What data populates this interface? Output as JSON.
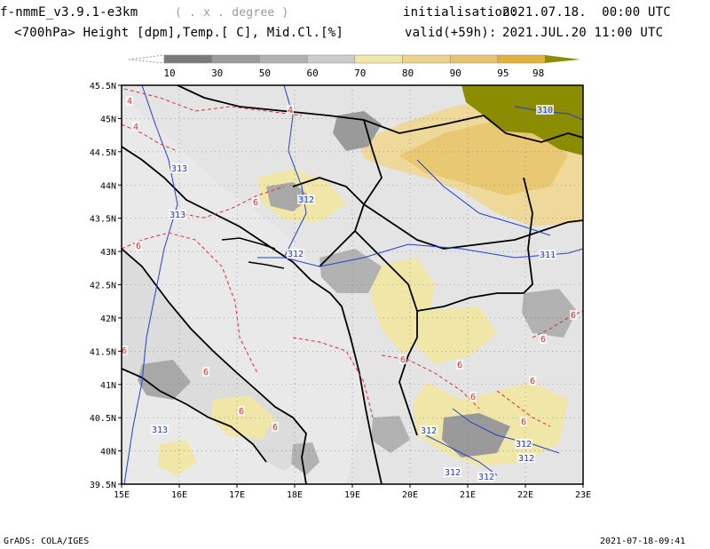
{
  "header": {
    "model_name": "f-nmmE_v3.9.1-e3km",
    "unit_note": "( . x . degree )",
    "fields": "<700hPa> Height [dpm],Temp.[ C], Mid.Cl.[%]",
    "init_label": "initialisation:",
    "init_value": "2021.07.18.  00:00 UTC",
    "valid_label": "valid(+59h):",
    "valid_value": "2021.JUL.20 11:00 UTC"
  },
  "colorbar": {
    "ticks": [
      "10",
      "30",
      "50",
      "60",
      "70",
      "80",
      "90",
      "95",
      "98"
    ],
    "colors": [
      "#7a7a7a",
      "#9a9a9a",
      "#b2b2b2",
      "#cccccc",
      "#f0e6a8",
      "#ecd48a",
      "#e6c46e",
      "#e0b238",
      "#8c8c00"
    ]
  },
  "map": {
    "lat_labels": [
      "45.5N",
      "45N",
      "44.5N",
      "44N",
      "43.5N",
      "43N",
      "42.5N",
      "42N",
      "41.5N",
      "41N",
      "40.5N",
      "40N",
      "39.5N"
    ],
    "lon_labels": [
      "15E",
      "16E",
      "17E",
      "18E",
      "19E",
      "20E",
      "21E",
      "22E",
      "23E"
    ],
    "height_labels": [
      "310",
      "313",
      "313",
      "312",
      "312",
      "311",
      "313",
      "312",
      "312",
      "312",
      "312",
      "312"
    ],
    "temp_labels": [
      "4",
      "4",
      "4",
      "6",
      "6",
      "6",
      "6",
      "6",
      "6",
      "6",
      "6",
      "6",
      "6",
      "6",
      "6",
      "6"
    ],
    "colors": {
      "land": "#e4e4e4",
      "sea": "#eaeaea",
      "height_contour": "#2040d0",
      "temp_contour": "#e03030",
      "heavy_cloud": "#8c8c00"
    }
  },
  "footer": {
    "left": "GrADS: COLA/IGES",
    "right": "2021-07-18-09:41"
  }
}
